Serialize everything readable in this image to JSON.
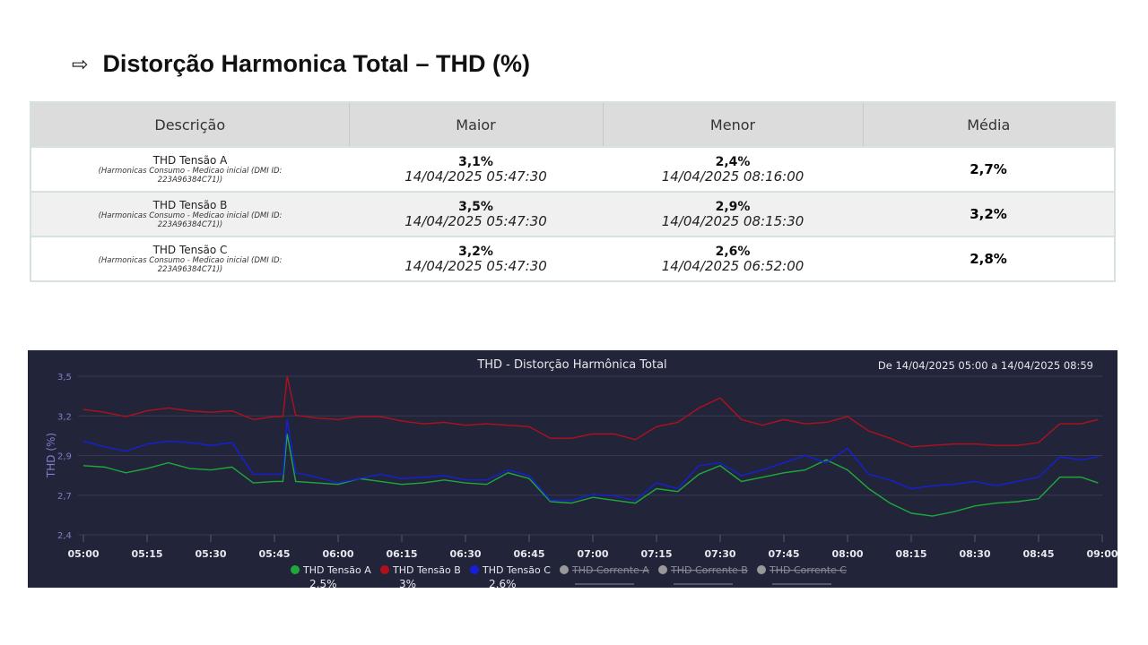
{
  "heading": {
    "arrow": "⇨",
    "title": "Distorção Harmonica Total – THD (%)"
  },
  "table": {
    "headers": [
      "Descrição",
      "Maior",
      "Menor",
      "Média"
    ],
    "rows": [
      {
        "name": "THD Tensão A",
        "sub1": "(Harmonicas Consumo - Medicao inicial (DMI ID:",
        "sub2": "223A96384C71))",
        "max": "3,1%",
        "max_date": "14/04/2025 05:47:30",
        "min": "2,4%",
        "min_date": "14/04/2025 08:16:00",
        "avg": "2,7%"
      },
      {
        "name": "THD Tensão B",
        "sub1": "(Harmonicas Consumo - Medicao inicial (DMI ID:",
        "sub2": "223A96384C71))",
        "max": "3,5%",
        "max_date": "14/04/2025 05:47:30",
        "min": "2,9%",
        "min_date": "14/04/2025 08:15:30",
        "avg": "3,2%"
      },
      {
        "name": "THD Tensão C",
        "sub1": "(Harmonicas Consumo - Medicao inicial (DMI ID:",
        "sub2": "223A96384C71))",
        "max": "3,2%",
        "max_date": "14/04/2025 05:47:30",
        "min": "2,6%",
        "min_date": "14/04/2025 06:52:00",
        "avg": "2,8%"
      }
    ]
  },
  "chart_data": {
    "type": "line",
    "title": "THD - Distorção Harmônica Total",
    "range_label": "De 14/04/2025 05:00 a 14/04/2025 08:59",
    "ylabel": "THD (%)",
    "xlabel": "",
    "ylim": [
      2.4,
      3.5
    ],
    "yticks": [
      "3,5",
      "3,2",
      "2,9",
      "2,7",
      "2,4"
    ],
    "xticks": [
      "05:00",
      "05:15",
      "05:30",
      "05:45",
      "06:00",
      "06:15",
      "06:30",
      "06:45",
      "07:00",
      "07:15",
      "07:30",
      "07:45",
      "08:00",
      "08:15",
      "08:30",
      "08:45",
      "09:00"
    ],
    "x_minutes": [
      0,
      5,
      10,
      15,
      20,
      25,
      30,
      35,
      40,
      45,
      47,
      48,
      50,
      55,
      60,
      65,
      70,
      75,
      80,
      85,
      90,
      95,
      100,
      105,
      110,
      115,
      120,
      125,
      130,
      135,
      140,
      145,
      150,
      155,
      160,
      165,
      170,
      175,
      180,
      185,
      190,
      195,
      200,
      205,
      210,
      215,
      220,
      225,
      230,
      235,
      239
    ],
    "series": [
      {
        "name": "THD Tensão A",
        "color": "#1fa83a",
        "visible": true,
        "legend_value": "2,5%",
        "values": [
          2.88,
          2.87,
          2.83,
          2.86,
          2.9,
          2.86,
          2.85,
          2.87,
          2.76,
          2.77,
          2.77,
          3.1,
          2.77,
          2.76,
          2.75,
          2.79,
          2.77,
          2.75,
          2.76,
          2.78,
          2.76,
          2.75,
          2.83,
          2.79,
          2.63,
          2.62,
          2.66,
          2.64,
          2.62,
          2.72,
          2.7,
          2.82,
          2.88,
          2.77,
          2.8,
          2.83,
          2.85,
          2.92,
          2.85,
          2.72,
          2.62,
          2.55,
          2.53,
          2.56,
          2.6,
          2.62,
          2.63,
          2.65,
          2.8,
          2.8,
          2.76
        ]
      },
      {
        "name": "THD Tensão B",
        "color": "#b0101c",
        "visible": true,
        "legend_value": "3%",
        "values": [
          3.27,
          3.25,
          3.22,
          3.26,
          3.28,
          3.26,
          3.25,
          3.26,
          3.2,
          3.22,
          3.22,
          3.5,
          3.23,
          3.21,
          3.2,
          3.22,
          3.22,
          3.19,
          3.17,
          3.18,
          3.16,
          3.17,
          3.16,
          3.15,
          3.07,
          3.07,
          3.1,
          3.1,
          3.06,
          3.15,
          3.18,
          3.28,
          3.35,
          3.2,
          3.16,
          3.2,
          3.17,
          3.18,
          3.22,
          3.12,
          3.07,
          3.01,
          3.02,
          3.03,
          3.03,
          3.02,
          3.02,
          3.04,
          3.17,
          3.17,
          3.2
        ]
      },
      {
        "name": "THD Tensão C",
        "color": "#1420d8",
        "visible": true,
        "legend_value": "2,6%",
        "values": [
          3.05,
          3.01,
          2.98,
          3.03,
          3.05,
          3.04,
          3.02,
          3.04,
          2.82,
          2.82,
          2.82,
          3.2,
          2.83,
          2.8,
          2.76,
          2.79,
          2.82,
          2.79,
          2.8,
          2.81,
          2.78,
          2.78,
          2.85,
          2.81,
          2.64,
          2.64,
          2.68,
          2.67,
          2.64,
          2.76,
          2.72,
          2.88,
          2.9,
          2.81,
          2.85,
          2.9,
          2.95,
          2.9,
          3.0,
          2.82,
          2.78,
          2.72,
          2.74,
          2.75,
          2.77,
          2.74,
          2.77,
          2.8,
          2.94,
          2.92,
          2.94
        ]
      },
      {
        "name": "THD Corrente A",
        "color": "#999999",
        "visible": false,
        "legend_value": ""
      },
      {
        "name": "THD Corrente B",
        "color": "#999999",
        "visible": false,
        "legend_value": ""
      },
      {
        "name": "THD Corrente C",
        "color": "#999999",
        "visible": false,
        "legend_value": ""
      }
    ]
  }
}
